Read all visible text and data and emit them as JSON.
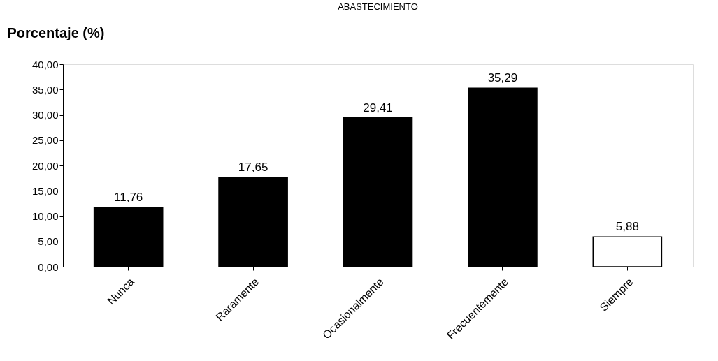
{
  "chart_data": {
    "type": "bar",
    "title": "ABASTECIMIENTO",
    "ylabel": "Porcentaje (%)",
    "categories": [
      "Nunca",
      "Raramente",
      "Ocasionalmente",
      "Frecuentemente",
      "Siempre"
    ],
    "values": [
      11.76,
      17.65,
      29.41,
      35.29,
      5.88
    ],
    "colors": [
      "#000000",
      "#000000",
      "#000000",
      "#000000",
      "#ffffff"
    ],
    "value_labels": [
      "11,76",
      "17,65",
      "29,41",
      "35,29",
      "5,88"
    ],
    "ylim": [
      0,
      40
    ],
    "yticks": [
      {
        "value": 0,
        "label": "0,00"
      },
      {
        "value": 5,
        "label": "5,00"
      },
      {
        "value": 10,
        "label": "10,00"
      },
      {
        "value": 15,
        "label": "15,00"
      },
      {
        "value": 20,
        "label": "20,00"
      },
      {
        "value": 25,
        "label": "25,00"
      },
      {
        "value": 30,
        "label": "30,00"
      },
      {
        "value": 35,
        "label": "35,00"
      },
      {
        "value": 40,
        "label": "40,00"
      }
    ],
    "grid": false,
    "legend": false
  }
}
